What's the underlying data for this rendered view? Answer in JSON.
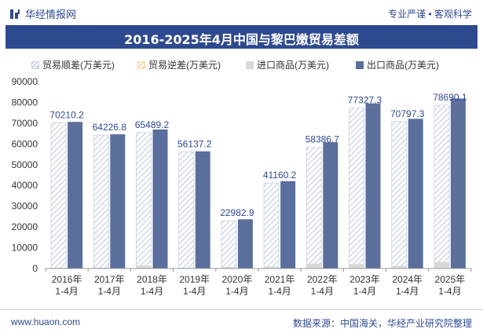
{
  "header": {
    "logo_text": "华经情报网",
    "slogan": "专业严谨 • 客观科学"
  },
  "chart_data": {
    "type": "bar",
    "title": "2016-2025年4月中国与黎巴嫩贸易差额",
    "categories": [
      "2016年\n1-4月",
      "2017年\n1-4月",
      "2018年\n1-4月",
      "2019年\n1-4月",
      "2020年\n1-4月",
      "2021年\n1-4月",
      "2022年\n1-4月",
      "2023年\n1-4月",
      "2024年\n1-4月",
      "2025年\n1-4月"
    ],
    "series": [
      {
        "name": "贸易顺差(万美元)",
        "values": [
          70210.2,
          64226.8,
          65489.2,
          56137.2,
          22982.9,
          41160.2,
          58386.7,
          77327.3,
          70797.3,
          78690.1
        ],
        "color": "#c8d2e2"
      },
      {
        "name": "贸易逆差(万美元)",
        "values": [
          0,
          0,
          0,
          0,
          0,
          0,
          0,
          0,
          0,
          0
        ],
        "color": "#f1d7a4"
      },
      {
        "name": "进口商品(万美元)",
        "values": [
          400,
          400,
          1500,
          300,
          700,
          900,
          2400,
          2200,
          1300,
          3200
        ],
        "color": "#d9d9d9"
      },
      {
        "name": "出口商品(万美元)",
        "values": [
          70610.2,
          64626.8,
          66989.2,
          56437.2,
          23682.9,
          42060.2,
          60786.7,
          79527.3,
          72097.3,
          81890.1
        ],
        "color": "#5b6f9d"
      }
    ],
    "data_labels": [
      "70210.2",
      "64226.8",
      "65489.2",
      "56137.2",
      "22982.9",
      "41160.2",
      "58386.7",
      "77327.3",
      "70797.3",
      "78690.1"
    ],
    "yticks": [
      "0",
      "10000",
      "20000",
      "30000",
      "40000",
      "50000",
      "60000",
      "70000",
      "80000",
      "90000"
    ],
    "ylim": [
      0,
      90000
    ],
    "grid": false,
    "legend": "top"
  },
  "footer": {
    "website": "www.huaon.com",
    "source": "数据来源：中国海关，华经产业研究院整理"
  }
}
